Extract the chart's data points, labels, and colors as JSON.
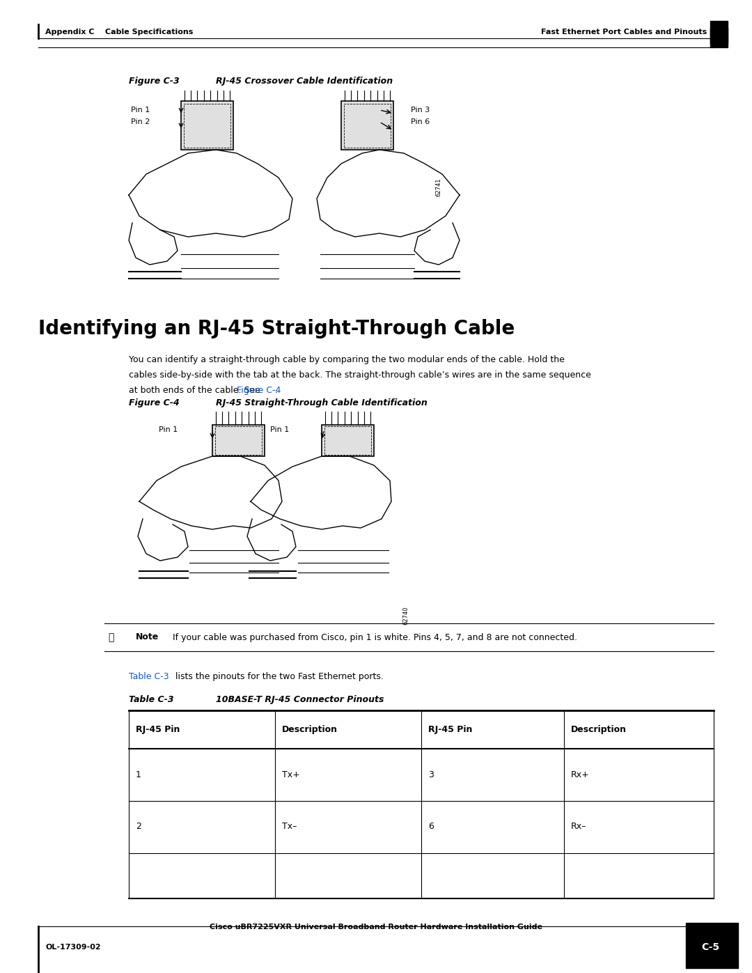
{
  "page_width": 10.8,
  "page_height": 13.97,
  "bg_color": "#ffffff",
  "header_left": "Appendix C    Cable Specifications",
  "header_right": "Fast Ethernet Port Cables and Pinouts",
  "footer_center": "Cisco uBR7225VXR Universal Broadband Router Hardware Installation Guide",
  "footer_left": "OL-17309-02",
  "footer_right": "C-5",
  "fig3_caption_label": "Figure C-3",
  "fig3_caption_text": "RJ-45 Crossover Cable Identification",
  "fig3_pin_labels": [
    "Pin 1",
    "Pin 2",
    "Pin 3",
    "Pin 6"
  ],
  "fig3_number": "62741",
  "section_title": "Identifying an RJ-45 Straight-Through Cable",
  "body_text": "You can identify a straight-through cable by comparing the two modular ends of the cable. Hold the\ncables side-by-side with the tab at the back. The straight-through cable’s wires are in the same sequence\nat both ends of the cable. See Figure C-4.",
  "fig4_caption_label": "Figure C-4",
  "fig4_caption_text": "RJ-45 Straight-Through Cable Identification",
  "fig4_pin_labels": [
    "Pin 1",
    "Pin 1"
  ],
  "fig4_number": "62740",
  "note_label": "Note",
  "note_text": "If your cable was purchased from Cisco, pin 1 is white. Pins 4, 5, 7, and 8 are not connected.",
  "table_ref_text_pre": "Table C-3",
  "table_ref_text_post": " lists the pinouts for the two Fast Ethernet ports.",
  "table_caption_label": "Table C-3",
  "table_caption_text": "10BASE-T RJ-45 Connector Pinouts",
  "table_headers": [
    "RJ-45 Pin",
    "Description",
    "RJ-45 Pin",
    "Description"
  ],
  "table_rows": [
    [
      "1",
      "Tx+",
      "3",
      "Rx+"
    ],
    [
      "2",
      "Tx–",
      "6",
      "Rx–"
    ]
  ],
  "link_color": "#1155CC",
  "header_font_size": 8,
  "section_title_font_size": 20,
  "body_font_size": 9,
  "caption_font_size": 9,
  "table_header_font_size": 9,
  "table_body_font_size": 9
}
